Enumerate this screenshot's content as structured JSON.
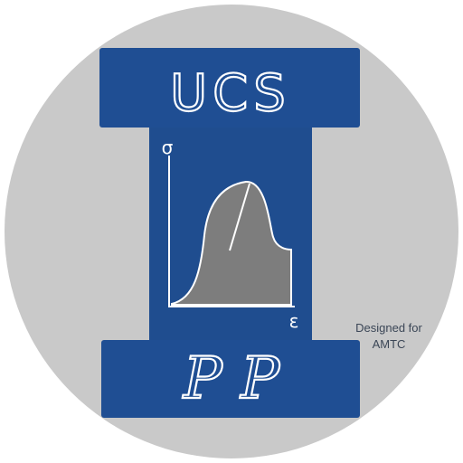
{
  "logo": {
    "top_text": "UCS",
    "axis_y": "σ",
    "axis_x": "ε",
    "bottom_text": "P P"
  },
  "credit": {
    "line1": "Designed for",
    "line2": "AMTC"
  }
}
